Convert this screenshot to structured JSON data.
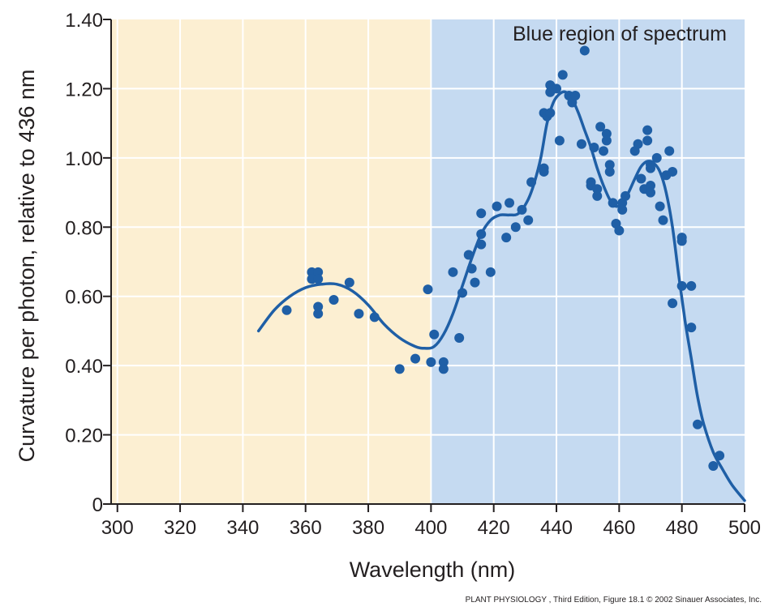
{
  "credit": "PLANT PHYSIOLOGY , Third Edition, Figure 18.1  © 2002 Sinauer Associates, Inc.",
  "chart_data": {
    "type": "scatter",
    "title": "",
    "xlabel": "Wavelength (nm)",
    "ylabel": "Curvature per photon, relative to 436 nm",
    "xlim": [
      298,
      500
    ],
    "ylim": [
      0,
      1.4
    ],
    "xticks": [
      300,
      320,
      340,
      360,
      380,
      400,
      420,
      440,
      460,
      480,
      500
    ],
    "xtick_labels": [
      "300",
      "320",
      "340",
      "360",
      "380",
      "400",
      "420",
      "440",
      "460",
      "480",
      "500"
    ],
    "yticks": [
      0,
      0.2,
      0.4,
      0.6,
      0.8,
      1.0,
      1.2,
      1.4
    ],
    "ytick_labels": [
      "0",
      "0.20",
      "0.40",
      "0.60",
      "0.80",
      "1.00",
      "1.20",
      "1.40"
    ],
    "grid": true,
    "regions": [
      {
        "x_range": [
          298,
          400
        ],
        "color": "#fcefd2",
        "label": ""
      },
      {
        "x_range": [
          400,
          500
        ],
        "color": "#c5daf1",
        "label": "Blue region of spectrum"
      }
    ],
    "colors": {
      "series": "#1f5fa6",
      "grid": "#ffffff",
      "axis": "#231f20"
    },
    "points": [
      [
        354,
        0.56
      ],
      [
        362,
        0.67
      ],
      [
        362,
        0.65
      ],
      [
        364,
        0.67
      ],
      [
        364,
        0.65
      ],
      [
        364,
        0.57
      ],
      [
        364,
        0.55
      ],
      [
        369,
        0.59
      ],
      [
        374,
        0.64
      ],
      [
        377,
        0.55
      ],
      [
        382,
        0.54
      ],
      [
        390,
        0.39
      ],
      [
        395,
        0.42
      ],
      [
        399,
        0.62
      ],
      [
        400,
        0.41
      ],
      [
        401,
        0.49
      ],
      [
        404,
        0.41
      ],
      [
        404,
        0.39
      ],
      [
        407,
        0.67
      ],
      [
        409,
        0.48
      ],
      [
        410,
        0.61
      ],
      [
        412,
        0.72
      ],
      [
        413,
        0.68
      ],
      [
        414,
        0.64
      ],
      [
        416,
        0.75
      ],
      [
        416,
        0.78
      ],
      [
        416,
        0.84
      ],
      [
        419,
        0.67
      ],
      [
        421,
        0.86
      ],
      [
        424,
        0.77
      ],
      [
        425,
        0.87
      ],
      [
        427,
        0.8
      ],
      [
        429,
        0.85
      ],
      [
        431,
        0.82
      ],
      [
        432,
        0.93
      ],
      [
        436,
        0.97
      ],
      [
        436,
        0.96
      ],
      [
        436,
        1.13
      ],
      [
        437,
        1.12
      ],
      [
        438,
        1.13
      ],
      [
        438,
        1.19
      ],
      [
        438,
        1.21
      ],
      [
        440,
        1.2
      ],
      [
        441,
        1.05
      ],
      [
        442,
        1.24
      ],
      [
        444,
        1.18
      ],
      [
        445,
        1.16
      ],
      [
        446,
        1.18
      ],
      [
        448,
        1.04
      ],
      [
        449,
        1.31
      ],
      [
        451,
        0.93
      ],
      [
        451,
        0.92
      ],
      [
        452,
        1.03
      ],
      [
        453,
        0.89
      ],
      [
        453,
        0.91
      ],
      [
        454,
        1.09
      ],
      [
        455,
        1.02
      ],
      [
        456,
        1.07
      ],
      [
        456,
        1.05
      ],
      [
        457,
        0.96
      ],
      [
        457,
        0.98
      ],
      [
        458,
        0.87
      ],
      [
        459,
        0.81
      ],
      [
        460,
        0.79
      ],
      [
        461,
        0.87
      ],
      [
        461,
        0.85
      ],
      [
        462,
        0.89
      ],
      [
        465,
        1.02
      ],
      [
        466,
        1.04
      ],
      [
        467,
        0.94
      ],
      [
        468,
        0.91
      ],
      [
        469,
        1.08
      ],
      [
        469,
        1.05
      ],
      [
        470,
        0.98
      ],
      [
        470,
        0.97
      ],
      [
        470,
        0.92
      ],
      [
        470,
        0.9
      ],
      [
        472,
        1.0
      ],
      [
        473,
        0.86
      ],
      [
        474,
        0.82
      ],
      [
        475,
        0.95
      ],
      [
        476,
        1.02
      ],
      [
        477,
        0.96
      ],
      [
        477,
        0.58
      ],
      [
        480,
        0.77
      ],
      [
        480,
        0.76
      ],
      [
        480,
        0.63
      ],
      [
        483,
        0.63
      ],
      [
        483,
        0.51
      ],
      [
        485,
        0.23
      ],
      [
        490,
        0.11
      ],
      [
        492,
        0.14
      ]
    ],
    "fit_curve": [
      [
        345,
        0.5
      ],
      [
        350,
        0.56
      ],
      [
        355,
        0.6
      ],
      [
        360,
        0.625
      ],
      [
        365,
        0.635
      ],
      [
        370,
        0.635
      ],
      [
        375,
        0.615
      ],
      [
        380,
        0.575
      ],
      [
        385,
        0.52
      ],
      [
        390,
        0.48
      ],
      [
        395,
        0.455
      ],
      [
        398,
        0.45
      ],
      [
        401,
        0.455
      ],
      [
        404,
        0.49
      ],
      [
        407,
        0.55
      ],
      [
        410,
        0.63
      ],
      [
        413,
        0.71
      ],
      [
        416,
        0.78
      ],
      [
        419,
        0.82
      ],
      [
        422,
        0.835
      ],
      [
        425,
        0.835
      ],
      [
        428,
        0.84
      ],
      [
        431,
        0.88
      ],
      [
        433,
        0.93
      ],
      [
        435,
        1.0
      ],
      [
        437,
        1.1
      ],
      [
        439,
        1.16
      ],
      [
        441,
        1.185
      ],
      [
        443,
        1.19
      ],
      [
        445,
        1.17
      ],
      [
        447,
        1.13
      ],
      [
        449,
        1.08
      ],
      [
        451,
        1.03
      ],
      [
        453,
        0.97
      ],
      [
        455,
        0.92
      ],
      [
        457,
        0.88
      ],
      [
        459,
        0.86
      ],
      [
        461,
        0.87
      ],
      [
        463,
        0.9
      ],
      [
        465,
        0.94
      ],
      [
        467,
        0.975
      ],
      [
        469,
        0.99
      ],
      [
        471,
        0.985
      ],
      [
        473,
        0.96
      ],
      [
        475,
        0.9
      ],
      [
        477,
        0.8
      ],
      [
        479,
        0.66
      ],
      [
        481,
        0.53
      ],
      [
        483,
        0.42
      ],
      [
        485,
        0.31
      ],
      [
        487,
        0.23
      ],
      [
        490,
        0.15
      ],
      [
        493,
        0.1
      ],
      [
        496,
        0.055
      ],
      [
        500,
        0.01
      ]
    ]
  }
}
